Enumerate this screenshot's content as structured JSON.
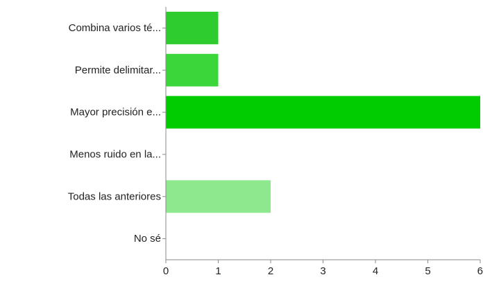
{
  "chart_data": {
    "type": "bar",
    "orientation": "horizontal",
    "categories": [
      "Combina varios té...",
      "Permite delimitar...",
      "Mayor precisión e...",
      "Menos ruido en la...",
      "Todas las anteriores",
      "No sé"
    ],
    "values": [
      1,
      1,
      6,
      0,
      2,
      0
    ],
    "colors": [
      "#2ecc2e",
      "#3ad63a",
      "#00cc00",
      "#29c929",
      "#8ee88e",
      "#33cc33"
    ],
    "xlim": [
      0,
      6
    ],
    "xticks": [
      "0",
      "1",
      "2",
      "3",
      "4",
      "5",
      "6"
    ],
    "grid": false
  }
}
